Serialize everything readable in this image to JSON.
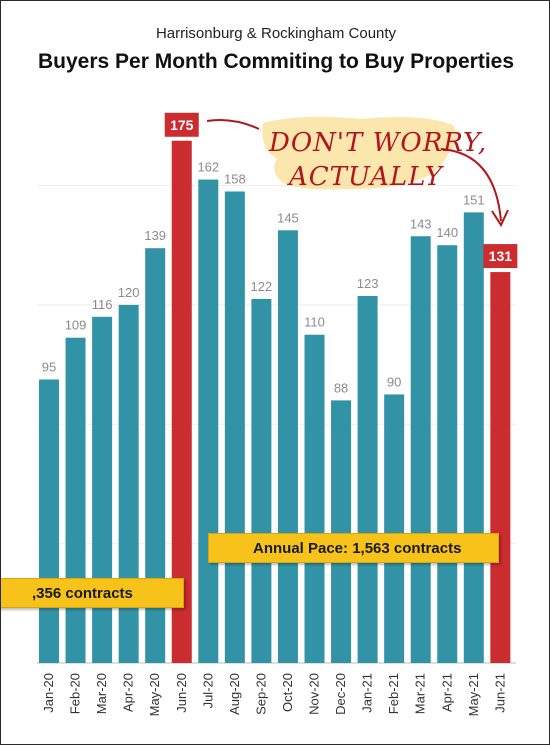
{
  "header": {
    "subtitle": "Harrisonburg & Rockingham County",
    "title": "Buyers Per Month Commiting to Buy Properties"
  },
  "annotations": {
    "handwritten_line1": "DON'T WORRY,",
    "handwritten_line2": "ACTUALLY",
    "pace_2021": "Annual Pace: 1,563 contracts",
    "pace_2020": ",356 contracts"
  },
  "colors": {
    "teal": "#3293a6",
    "red": "#cb2c30",
    "label_gray": "#8c8c8c",
    "highlight": "#f7c21a"
  },
  "chart_data": {
    "type": "bar",
    "title": "Buyers Per Month Commiting to Buy Properties",
    "subtitle": "Harrisonburg & Rockingham County",
    "categories": [
      "Jan-20",
      "Feb-20",
      "Mar-20",
      "Apr-20",
      "May-20",
      "Jun-20",
      "Jul-20",
      "Aug-20",
      "Sep-20",
      "Oct-20",
      "Nov-20",
      "Dec-20",
      "Jan-21",
      "Feb-21",
      "Mar-21",
      "Apr-21",
      "May-21",
      "Jun-21"
    ],
    "values": [
      95,
      109,
      116,
      120,
      139,
      175,
      162,
      158,
      122,
      145,
      110,
      88,
      123,
      90,
      143,
      140,
      151,
      131
    ],
    "highlighted": [
      "Jun-20",
      "Jun-21"
    ],
    "ylim": [
      0,
      190
    ],
    "grid": true,
    "legend": "none"
  }
}
